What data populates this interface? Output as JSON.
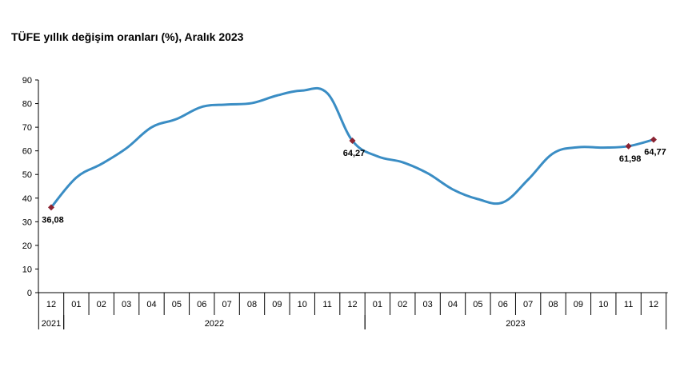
{
  "title": "TÜFE yıllık değişim oranları (%), Aralık 2023",
  "chart_data": {
    "type": "line",
    "title": "TÜFE yıllık değişim oranları (%), Aralık 2023",
    "xlabel": "",
    "ylabel": "",
    "ylim": [
      0,
      90
    ],
    "yticks": [
      0,
      10,
      20,
      30,
      40,
      50,
      60,
      70,
      80,
      90
    ],
    "grid": false,
    "categories": [
      "12",
      "01",
      "02",
      "03",
      "04",
      "05",
      "06",
      "07",
      "08",
      "09",
      "10",
      "11",
      "12",
      "01",
      "02",
      "03",
      "04",
      "05",
      "06",
      "07",
      "08",
      "09",
      "10",
      "11",
      "12"
    ],
    "year_groups": [
      {
        "label": "2021",
        "start": 0,
        "end": 0
      },
      {
        "label": "2022",
        "start": 1,
        "end": 12
      },
      {
        "label": "2023",
        "start": 13,
        "end": 24
      }
    ],
    "series": [
      {
        "color": "#3a8dc4",
        "values": [
          36.08,
          48.69,
          54.44,
          61.14,
          69.97,
          73.5,
          78.62,
          79.6,
          80.21,
          83.45,
          85.51,
          84.39,
          64.27,
          57.68,
          55.18,
          50.51,
          43.68,
          39.59,
          38.21,
          47.83,
          58.94,
          61.53,
          61.36,
          61.98,
          64.77
        ]
      }
    ],
    "marked_points": [
      {
        "index": 0,
        "label": "36,08",
        "position": "below"
      },
      {
        "index": 12,
        "label": "64,27",
        "position": "below"
      },
      {
        "index": 23,
        "label": "61,98",
        "position": "below"
      },
      {
        "index": 24,
        "label": "64,77",
        "position": "below"
      }
    ],
    "marker_color": "#8b2332"
  }
}
